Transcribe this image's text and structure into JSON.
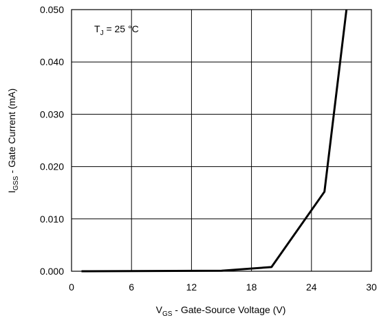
{
  "chart_data": {
    "type": "line",
    "x": [
      1,
      15,
      20,
      25.3,
      27.5
    ],
    "series": [
      {
        "values": [
          0.0,
          0.0001,
          0.0008,
          0.0152,
          0.05
        ]
      }
    ],
    "xlim": [
      0,
      30
    ],
    "ylim": [
      0,
      0.05
    ],
    "x_ticks": [
      0,
      6,
      12,
      18,
      24,
      30
    ],
    "x_tick_labels": [
      "0",
      "6",
      "12",
      "18",
      "24",
      "30"
    ],
    "y_ticks": [
      0,
      0.01,
      0.02,
      0.03,
      0.04,
      0.05
    ],
    "y_tick_labels": [
      "0.000",
      "0.010",
      "0.020",
      "0.030",
      "0.040",
      "0.050"
    ],
    "xlabel": {
      "main": "V",
      "sub": "GS",
      "rest": " - Gate-Source Voltage (V)"
    },
    "ylabel": {
      "main": "I",
      "sub": "GSS",
      "rest": " - Gate Current (mA)"
    },
    "annotation": {
      "main": "T",
      "sub": "J",
      "rest": " = 25 °C"
    },
    "grid": true,
    "line_color": "#000000",
    "grid_color": "#000000"
  }
}
